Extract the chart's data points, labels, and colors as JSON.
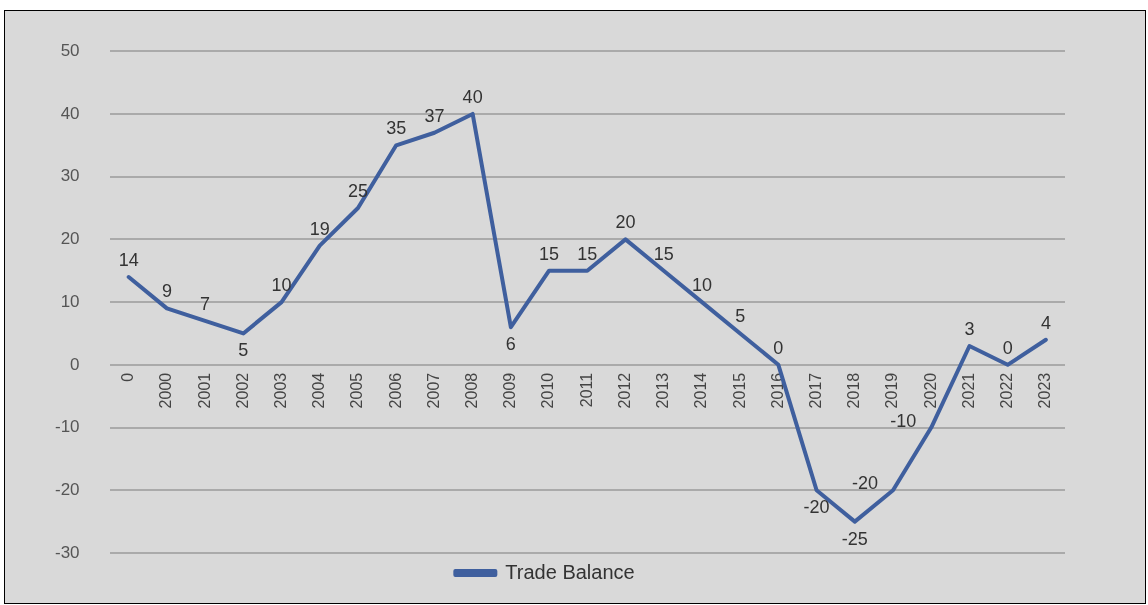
{
  "chart_data": {
    "type": "line",
    "categories": [
      "0",
      "2000",
      "2001",
      "2002",
      "2003",
      "2004",
      "2005",
      "2006",
      "2007",
      "2008",
      "2009",
      "2010",
      "2011",
      "2012",
      "2013",
      "2014",
      "2015",
      "2016",
      "2017",
      "2018",
      "2019",
      "2020",
      "2021",
      "2022",
      "2023"
    ],
    "series": [
      {
        "name": "Trade Balance",
        "color": "#3f5f9e",
        "values": [
          14,
          9,
          7,
          5,
          10,
          19,
          25,
          35,
          37,
          40,
          6,
          15,
          15,
          20,
          15,
          10,
          5,
          0,
          -20,
          -25,
          -20,
          -10,
          3,
          0,
          4
        ]
      }
    ],
    "ylim": [
      -30,
      50
    ],
    "yticks": [
      -30,
      -20,
      -10,
      0,
      10,
      20,
      30,
      40,
      50
    ],
    "grid": "y",
    "legend": "bottom",
    "data_labels": true,
    "marker": "none",
    "line_style": "solid"
  }
}
